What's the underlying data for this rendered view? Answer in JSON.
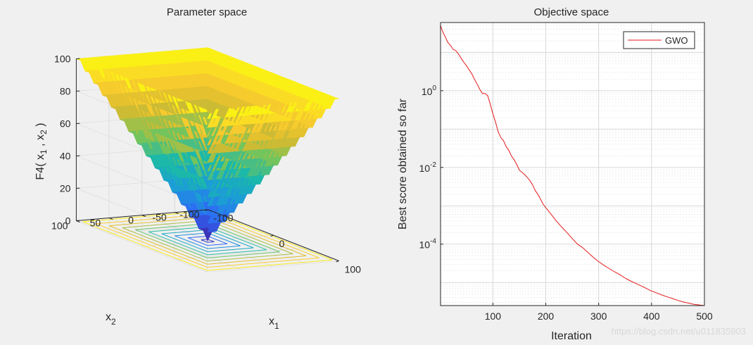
{
  "chart_data": [
    {
      "type": "surface3d",
      "title": "Parameter space",
      "function": "max(|x1|, |x2|)",
      "x": {
        "label_base": "x",
        "label_sub": "1",
        "ticks": [
          -100,
          0,
          100
        ],
        "range": [
          -100,
          100
        ]
      },
      "y": {
        "label_base": "x",
        "label_sub": "2",
        "ticks": [
          -100,
          -50,
          0,
          50,
          100
        ],
        "range": [
          -100,
          100
        ]
      },
      "z": {
        "label_parts": [
          "F4( x",
          "1",
          " , x",
          "2",
          " )"
        ],
        "ticks": [
          0,
          20,
          40,
          60,
          80,
          100
        ],
        "range": [
          0,
          100
        ]
      },
      "contour_levels": [
        5,
        15,
        25,
        35,
        45,
        55,
        65,
        75,
        85,
        95
      ],
      "colormap": [
        "#3e26a8",
        "#2f66f7",
        "#1c9bd8",
        "#19b8ad",
        "#76c45a",
        "#d6ba30",
        "#fcce2e",
        "#f9fb0e"
      ]
    },
    {
      "type": "line",
      "title": "Objective space",
      "xlabel": "Iteration",
      "ylabel": "Best score obtained so far",
      "yscale": "log",
      "xlim": [
        1,
        500
      ],
      "ylim": [
        2.5e-06,
        60
      ],
      "xticks": [
        100,
        200,
        300,
        400,
        500
      ],
      "yticks": [
        {
          "value": 1,
          "base": "10",
          "exp": "0"
        },
        {
          "value": 0.01,
          "base": "10",
          "exp": "-2"
        },
        {
          "value": 0.0001,
          "base": "10",
          "exp": "-4"
        }
      ],
      "legend": {
        "label": "GWO",
        "position": "top-right"
      },
      "series": [
        {
          "name": "GWO",
          "color": "#e41a1c",
          "x": [
            1,
            5,
            10,
            15,
            20,
            25,
            30,
            35,
            40,
            45,
            50,
            55,
            60,
            65,
            70,
            75,
            80,
            85,
            90,
            95,
            100,
            105,
            110,
            115,
            120,
            125,
            130,
            135,
            140,
            145,
            150,
            155,
            160,
            165,
            170,
            175,
            180,
            185,
            190,
            195,
            200,
            210,
            220,
            230,
            240,
            250,
            260,
            270,
            280,
            290,
            300,
            310,
            320,
            330,
            340,
            350,
            360,
            370,
            380,
            390,
            400,
            410,
            420,
            430,
            440,
            450,
            460,
            470,
            480,
            490,
            500
          ],
          "values": [
            50,
            35,
            25,
            18,
            15,
            12,
            11,
            9,
            7,
            5.5,
            4.5,
            3.5,
            2.8,
            2.0,
            1.5,
            1.1,
            0.85,
            0.85,
            0.75,
            0.45,
            0.25,
            0.15,
            0.085,
            0.06,
            0.05,
            0.035,
            0.028,
            0.02,
            0.016,
            0.012,
            0.0085,
            0.0075,
            0.0065,
            0.0055,
            0.0045,
            0.0035,
            0.0025,
            0.002,
            0.0015,
            0.0011,
            0.0009,
            0.0006,
            0.0004,
            0.00028,
            0.0002,
            0.00014,
            0.0001,
            8e-05,
            6e-05,
            4.5e-05,
            3.5e-05,
            2.8e-05,
            2.3e-05,
            1.9e-05,
            1.6e-05,
            1.3e-05,
            1.1e-05,
            9.5e-06,
            8.2e-06,
            7e-06,
            6e-06,
            5.3e-06,
            4.7e-06,
            4.2e-06,
            3.8e-06,
            3.4e-06,
            3.1e-06,
            2.9e-06,
            2.7e-06,
            2.6e-06,
            2.5e-06
          ]
        }
      ]
    }
  ],
  "watermark": "https://blog.csdn.net/u011835903"
}
